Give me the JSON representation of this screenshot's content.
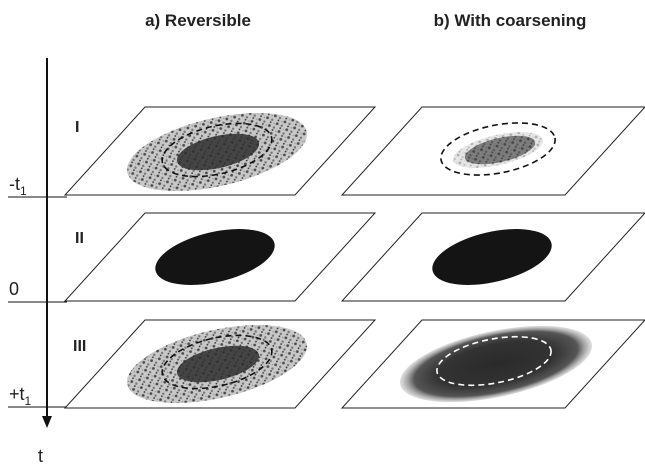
{
  "columns": {
    "a_title": "a) Reversible",
    "b_title": "b) With coarsening"
  },
  "rows": {
    "r1": "I",
    "r2": "II",
    "r3": "III"
  },
  "time_axis": {
    "label": "t",
    "ticks": [
      {
        "main": "-t",
        "sub": "1"
      },
      {
        "main": "0",
        "sub": ""
      },
      {
        "main": "+t",
        "sub": "1"
      }
    ]
  }
}
